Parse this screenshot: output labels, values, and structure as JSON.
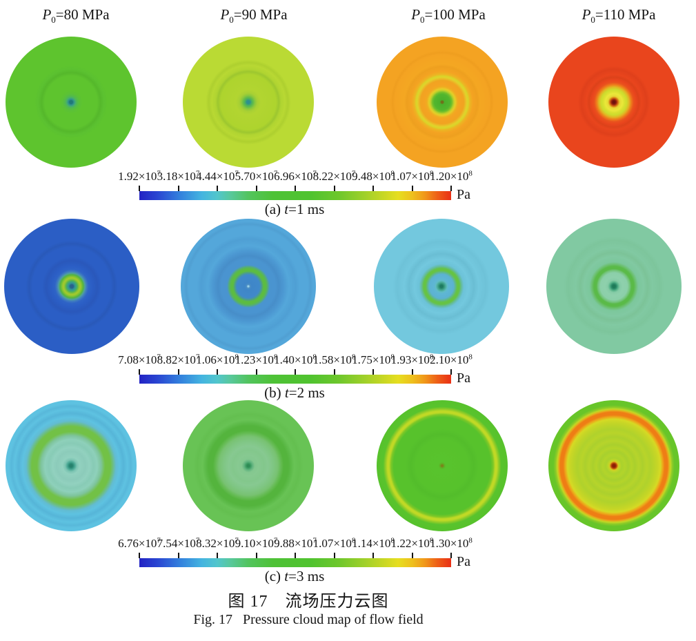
{
  "figure": {
    "caption_cn": "图 17　流场压力云图",
    "caption_en": "Fig. 17   Pressure cloud map of flow field"
  },
  "header": {
    "cols": [
      {
        "var": "P",
        "sub": "0",
        "rest": "=80 MPa"
      },
      {
        "var": "P",
        "sub": "0",
        "rest": "=90 MPa"
      },
      {
        "var": "P",
        "sub": "0",
        "rest": "=100 MPa"
      },
      {
        "var": "P",
        "sub": "0",
        "rest": "=110 MPa"
      }
    ]
  },
  "rows": [
    {
      "caption": {
        "pre": "(a) ",
        "t": "t",
        "post": "=1 ms"
      },
      "unit": "Pa",
      "ticks": [
        {
          "m": "1.92×10",
          "e": "7"
        },
        {
          "m": "3.18×10",
          "e": "7"
        },
        {
          "m": "4.44×10",
          "e": "7"
        },
        {
          "m": "5.70×10",
          "e": "7"
        },
        {
          "m": "6.96×10",
          "e": "7"
        },
        {
          "m": "8.22×10",
          "e": "7"
        },
        {
          "m": "9.48×10",
          "e": "8"
        },
        {
          "m": "1.07×10",
          "e": "8"
        },
        {
          "m": "1.20×10",
          "e": "8"
        }
      ]
    },
    {
      "caption": {
        "pre": "(b) ",
        "t": "t",
        "post": "=2 ms"
      },
      "unit": "Pa",
      "ticks": [
        {
          "m": "7.08×10",
          "e": "7"
        },
        {
          "m": "8.82×10",
          "e": "7"
        },
        {
          "m": "1.06×10",
          "e": "8"
        },
        {
          "m": "1.23×10",
          "e": "8"
        },
        {
          "m": "1.40×10",
          "e": "8"
        },
        {
          "m": "1.58×10",
          "e": "8"
        },
        {
          "m": "1.75×10",
          "e": "8"
        },
        {
          "m": "1.93×10",
          "e": "8"
        },
        {
          "m": "2.10×10",
          "e": "8"
        }
      ]
    },
    {
      "caption": {
        "pre": "(c) ",
        "t": "t",
        "post": "=3 ms"
      },
      "unit": "Pa",
      "ticks": [
        {
          "m": "6.76×10",
          "e": "7"
        },
        {
          "m": "7.54×10",
          "e": "7"
        },
        {
          "m": "8.32×10",
          "e": "7"
        },
        {
          "m": "9.10×10",
          "e": "7"
        },
        {
          "m": "9.88×10",
          "e": "7"
        },
        {
          "m": "1.07×10",
          "e": "8"
        },
        {
          "m": "1.14×10",
          "e": "8"
        },
        {
          "m": "1.22×10",
          "e": "8"
        },
        {
          "m": "1.30×10",
          "e": "8"
        }
      ]
    }
  ],
  "chart_data": {
    "type": "heatmap",
    "subtype": "pressure contour (cloud map) panels",
    "title_cn": "图 17　流场压力云图",
    "title_en": "Fig. 17  Pressure cloud map of flow field",
    "colormap": "rainbow: blue → cyan → green → yellow → orange → red",
    "colors": {
      "bar_left": "#2323c4",
      "bar_right": "#e93016"
    },
    "panel_columns": [
      "P0=80 MPa",
      "P0=90 MPa",
      "P0=100 MPa",
      "P0=110 MPa"
    ],
    "panel_rows": [
      "t=1 ms",
      "t=2 ms",
      "t=3 ms"
    ],
    "colorbars": [
      {
        "row": "t=1 ms",
        "unit": "Pa",
        "tick_labels": [
          "1.92×10⁷",
          "3.18×10⁷",
          "4.44×10⁷",
          "5.70×10⁷",
          "6.96×10⁷",
          "8.22×10⁷",
          "9.48×10⁸",
          "1.07×10⁸",
          "1.20×10⁸"
        ],
        "range_Pa": [
          19200000.0,
          120000000.0
        ]
      },
      {
        "row": "t=2 ms",
        "unit": "Pa",
        "tick_labels": [
          "7.08×10⁷",
          "8.82×10⁷",
          "1.06×10⁸",
          "1.23×10⁸",
          "1.40×10⁸",
          "1.58×10⁸",
          "1.75×10⁸",
          "1.93×10⁸",
          "2.10×10⁸"
        ],
        "range_Pa": [
          70800000.0,
          210000000.0
        ]
      },
      {
        "row": "t=3 ms",
        "unit": "Pa",
        "tick_labels": [
          "6.76×10⁷",
          "7.54×10⁷",
          "8.32×10⁷",
          "9.10×10⁷",
          "9.88×10⁷",
          "1.07×10⁸",
          "1.14×10⁸",
          "1.22×10⁸",
          "1.30×10⁸"
        ],
        "range_Pa": [
          67600000.0,
          130000000.0
        ]
      }
    ],
    "panels": [
      {
        "row": "t=1 ms",
        "P0_MPa": 80,
        "approx_body_pressure_Pa": 55000000.0,
        "appearance": "uniform green disc, faint mid ring, small teal core"
      },
      {
        "row": "t=1 ms",
        "P0_MPa": 90,
        "approx_body_pressure_Pa": 75000000.0,
        "appearance": "yellow-green disc, inner ring, green halo with teal center"
      },
      {
        "row": "t=1 ms",
        "P0_MPa": 100,
        "approx_body_pressure_Pa": 100000000.0,
        "appearance": "orange disc, thin yellow ring, green core blob, olive center dot"
      },
      {
        "row": "t=1 ms",
        "P0_MPa": 110,
        "approx_body_pressure_Pa": 115000000.0,
        "appearance": "red-orange disc, yellow-green ring, yellow core, dark-red center dot"
      },
      {
        "row": "t=2 ms",
        "P0_MPa": 80,
        "approx_body_pressure_Pa": 85000000.0,
        "appearance": "dark blue disc, small green annulus around teal core"
      },
      {
        "row": "t=2 ms",
        "P0_MPa": 90,
        "approx_body_pressure_Pa": 110000000.0,
        "appearance": "medium blue disc, green ring, darker blue interior"
      },
      {
        "row": "t=2 ms",
        "P0_MPa": 100,
        "approx_body_pressure_Pa": 125000000.0,
        "appearance": "light cyan-blue disc, green ring, teal center dot"
      },
      {
        "row": "t=2 ms",
        "P0_MPa": 110,
        "approx_body_pressure_Pa": 145000000.0,
        "appearance": "sea-green disc, green ring, dark teal center dot"
      },
      {
        "row": "t=3 ms",
        "P0_MPa": 80,
        "approx_body_pressure_Pa": 85000000.0,
        "appearance": "cyan disc, thick green ring, pale aqua interior, teal center"
      },
      {
        "row": "t=3 ms",
        "P0_MPa": 90,
        "approx_body_pressure_Pa": 100000000.0,
        "appearance": "green disc, darker green ring, pale sage interior"
      },
      {
        "row": "t=3 ms",
        "P0_MPa": 100,
        "approx_body_pressure_Pa": 105000000.0,
        "appearance": "green disc, thin yellow ring near rim, tiny olive center"
      },
      {
        "row": "t=3 ms",
        "P0_MPa": 110,
        "approx_body_pressure_Pa": 110000000.0,
        "appearance": "yellow-green disc, orange outer ring, green rim, dark-red center dot"
      }
    ]
  }
}
